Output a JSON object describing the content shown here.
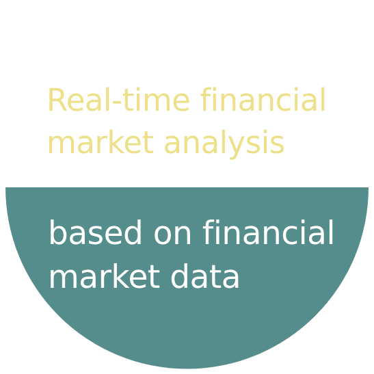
{
  "colors": {
    "background": "#ffffff",
    "top_text": "#ede08a",
    "half_circle_fill": "#558d8d",
    "bottom_text": "#ffffff"
  },
  "top_caption": {
    "lines": [
      "Real-time financial",
      "market analysis"
    ]
  },
  "bottom_caption": {
    "lines": [
      "based on financial",
      "market data"
    ]
  }
}
